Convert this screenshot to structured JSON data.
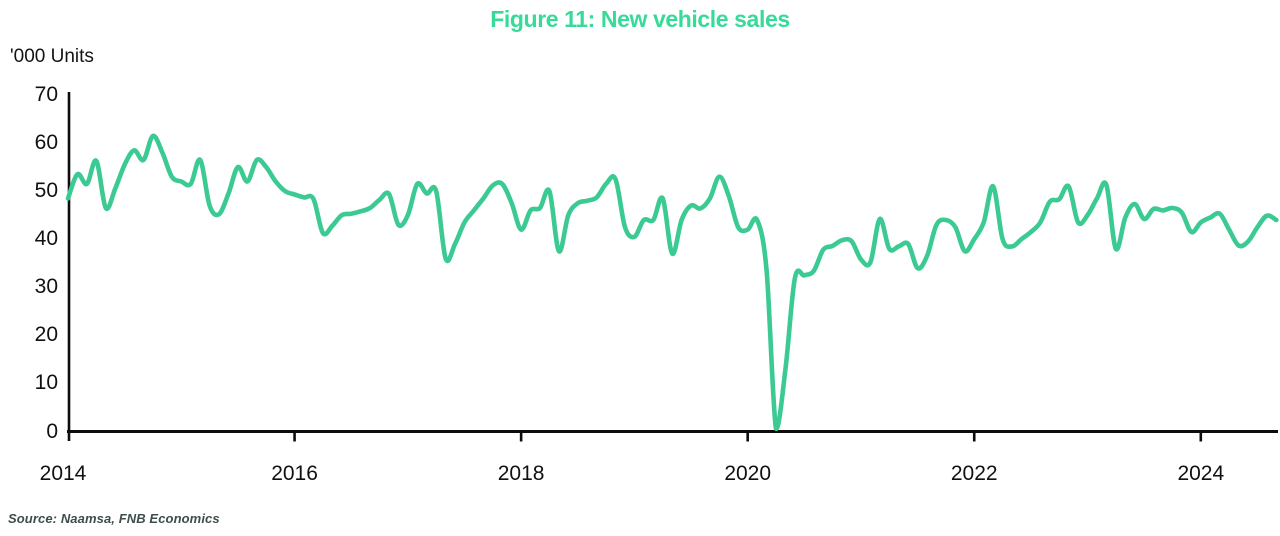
{
  "title": "Figure 11: New vehicle sales",
  "source": "Source: Naamsa, FNB Economics",
  "colors": {
    "title_green": "#35db97",
    "line_green": "#3cca93",
    "axis_black": "#0d0d0d",
    "label_black": "#111111",
    "source_gray": "#3e4d4d"
  },
  "chart_data": {
    "type": "line",
    "title": "Figure 11: New vehicle sales",
    "xlabel": "",
    "ylabel": "'000 Units",
    "ylim": [
      0,
      70
    ],
    "y_ticks": [
      0,
      10,
      20,
      30,
      40,
      50,
      60,
      70
    ],
    "x_ticks": [
      2014,
      2016,
      2018,
      2020,
      2022,
      2024
    ],
    "grid": false,
    "legend_position": "none",
    "frequency": "monthly",
    "x_start_month": "2014-01",
    "x_end_month": "2024-09",
    "series": [
      {
        "name": "New vehicle sales ('000 units)",
        "values": [
          48.5,
          53.5,
          51.5,
          56.3,
          46.5,
          50.5,
          55.5,
          58.5,
          56.5,
          61.5,
          58.0,
          53.0,
          52.0,
          51.5,
          56.5,
          47.0,
          45.2,
          49.5,
          55.0,
          52.0,
          56.5,
          55.0,
          52.0,
          50.0,
          49.3,
          48.7,
          48.4,
          41.3,
          42.8,
          45.0,
          45.3,
          45.8,
          46.5,
          48.2,
          49.4,
          43.0,
          45.0,
          51.5,
          49.5,
          50.0,
          36.0,
          39.0,
          43.5,
          46.0,
          48.5,
          51.2,
          51.5,
          47.5,
          42.0,
          46.0,
          46.5,
          50.0,
          37.5,
          45.0,
          47.5,
          48.0,
          48.7,
          51.5,
          52.5,
          42.5,
          40.5,
          44.0,
          44.0,
          48.5,
          37.0,
          44.0,
          47.0,
          46.4,
          48.5,
          53.0,
          49.0,
          42.5,
          42.0,
          44.0,
          33.5,
          0.6,
          12.9,
          31.9,
          32.5,
          33.4,
          37.8,
          38.6,
          39.8,
          39.6,
          35.8,
          35.2,
          44.2,
          38.0,
          38.5,
          39.0,
          34.0,
          36.5,
          43.0,
          44.0,
          42.5,
          37.5,
          40.0,
          43.5,
          51.0,
          40.0,
          38.5,
          40.0,
          41.5,
          43.5,
          47.8,
          48.3,
          51.0,
          43.5,
          45.0,
          48.5,
          51.3,
          38.0,
          44.5,
          47.3,
          44.2,
          46.3,
          46.0,
          46.5,
          45.5,
          41.5,
          43.5,
          44.5,
          45.3,
          42.0,
          38.7,
          39.5,
          42.5,
          44.9,
          44.0
        ]
      }
    ]
  }
}
